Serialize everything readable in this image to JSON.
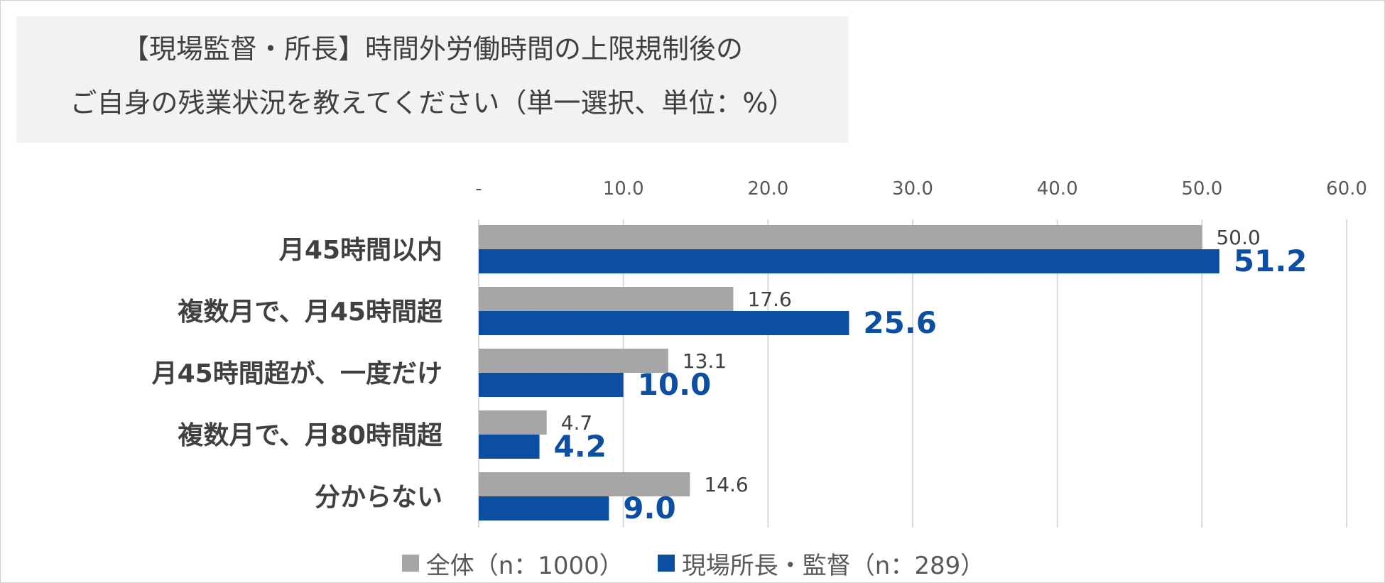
{
  "title": {
    "line1": "【現場監督・所長】時間外労働時間の上限規制後の",
    "line2": "ご自身の残業状況を教えてください（単一選択、単位：%）"
  },
  "colors": {
    "all": "#a6a6a6",
    "site": "#0b4ea2",
    "grid": "#d9d9d9",
    "tick_text": "#595959",
    "category_text": "#404040",
    "all_label_text": "#404040",
    "site_label_text": "#0b4ea2"
  },
  "chart_data": {
    "type": "bar",
    "orientation": "horizontal",
    "categories": [
      "月45時間以内",
      "複数月で、月45時間超",
      "月45時間超が、一度だけ",
      "複数月で、月80時間超",
      "分からない"
    ],
    "series": [
      {
        "name": "全体（n：1000）",
        "values": [
          50.0,
          17.6,
          13.1,
          4.7,
          14.6
        ]
      },
      {
        "name": "現場所長・監督（n：289）",
        "values": [
          51.2,
          25.6,
          10.0,
          4.2,
          9.0
        ]
      }
    ],
    "xlim": [
      0,
      60
    ],
    "xticks": [
      0,
      10,
      20,
      30,
      40,
      50,
      60
    ],
    "xtick_labels": [
      "-",
      "10.0",
      "20.0",
      "30.0",
      "40.0",
      "50.0",
      "60.0"
    ],
    "xaxis_position": "top",
    "grid": true,
    "legend": "bottom-center",
    "title": "【現場監督・所長】時間外労働時間の上限規制後の ご自身の残業状況を教えてください（単一選択、単位：%）"
  }
}
